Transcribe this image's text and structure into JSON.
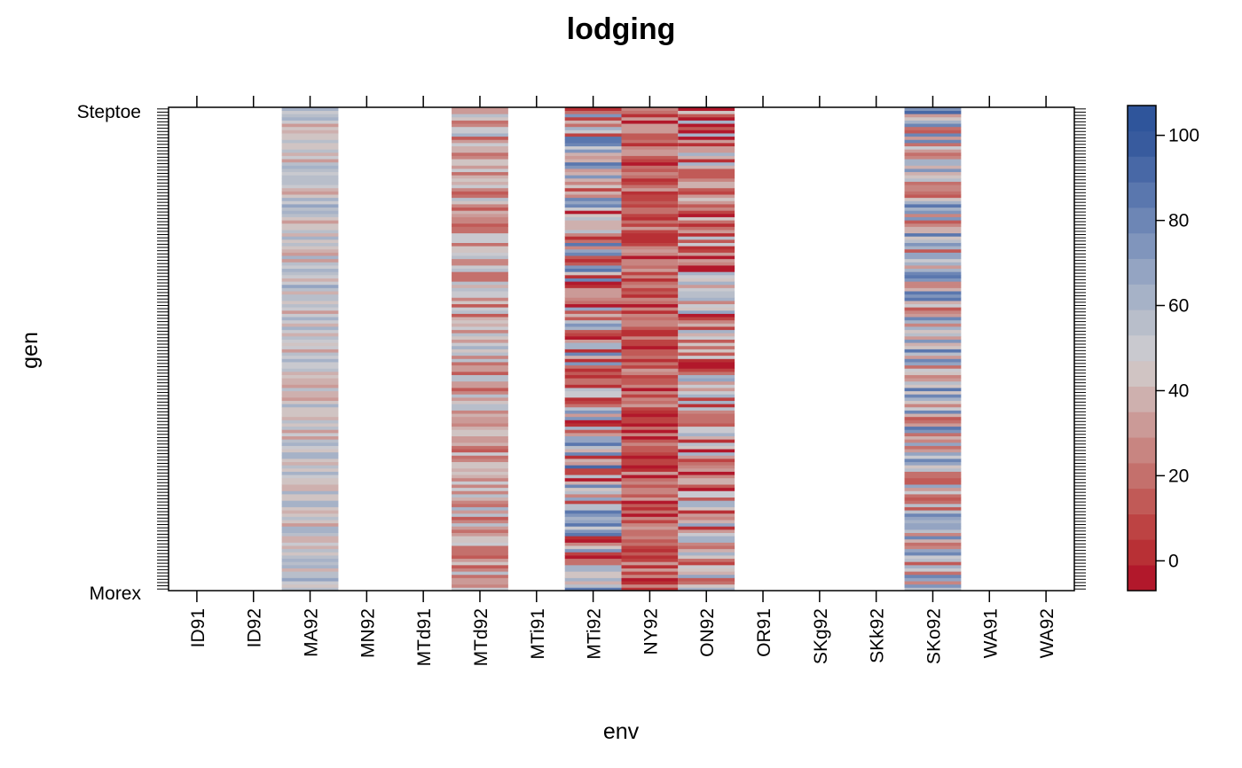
{
  "chart_data": {
    "type": "heatmap",
    "title": "lodging",
    "xlabel": "env",
    "ylabel": "gen",
    "x_categories": [
      "ID91",
      "ID92",
      "MA92",
      "MN92",
      "MTd91",
      "MTd92",
      "MTi91",
      "MTi92",
      "NY92",
      "ON92",
      "OR91",
      "SKg92",
      "SKk92",
      "SKo92",
      "WA91",
      "WA92"
    ],
    "y_first_label": "Morex",
    "y_last_label": "Steptoe",
    "y_visible_labels": [
      "Morex",
      "Steptoe"
    ],
    "n_genotypes": 150,
    "value_range": [
      -7,
      107
    ],
    "colorbar_ticks": [
      0,
      20,
      40,
      60,
      80,
      100
    ],
    "columns_with_data": {
      "MA92": {
        "mean": 48,
        "spread": 11
      },
      "MTd92": {
        "mean": 36,
        "spread": 15
      },
      "MTi92": {
        "mean": 42,
        "spread": 30
      },
      "NY92": {
        "mean": 14,
        "spread": 12
      },
      "ON92": {
        "mean": 30,
        "spread": 24
      },
      "SKo92": {
        "mean": 52,
        "spread": 24
      }
    },
    "colorscale": [
      "#B2182B",
      "#B83035",
      "#BD4343",
      "#C15A57",
      "#C4706C",
      "#C88581",
      "#CB9A97",
      "#CEB0AE",
      "#D0C4C3",
      "#C9C9CF",
      "#B8BECA",
      "#A6B2C7",
      "#94A4C2",
      "#8095BC",
      "#6D86B5",
      "#5A77AE",
      "#4868A6",
      "#385B9E",
      "#2F559B"
    ],
    "grid": false,
    "legend": "colorbar-right"
  }
}
